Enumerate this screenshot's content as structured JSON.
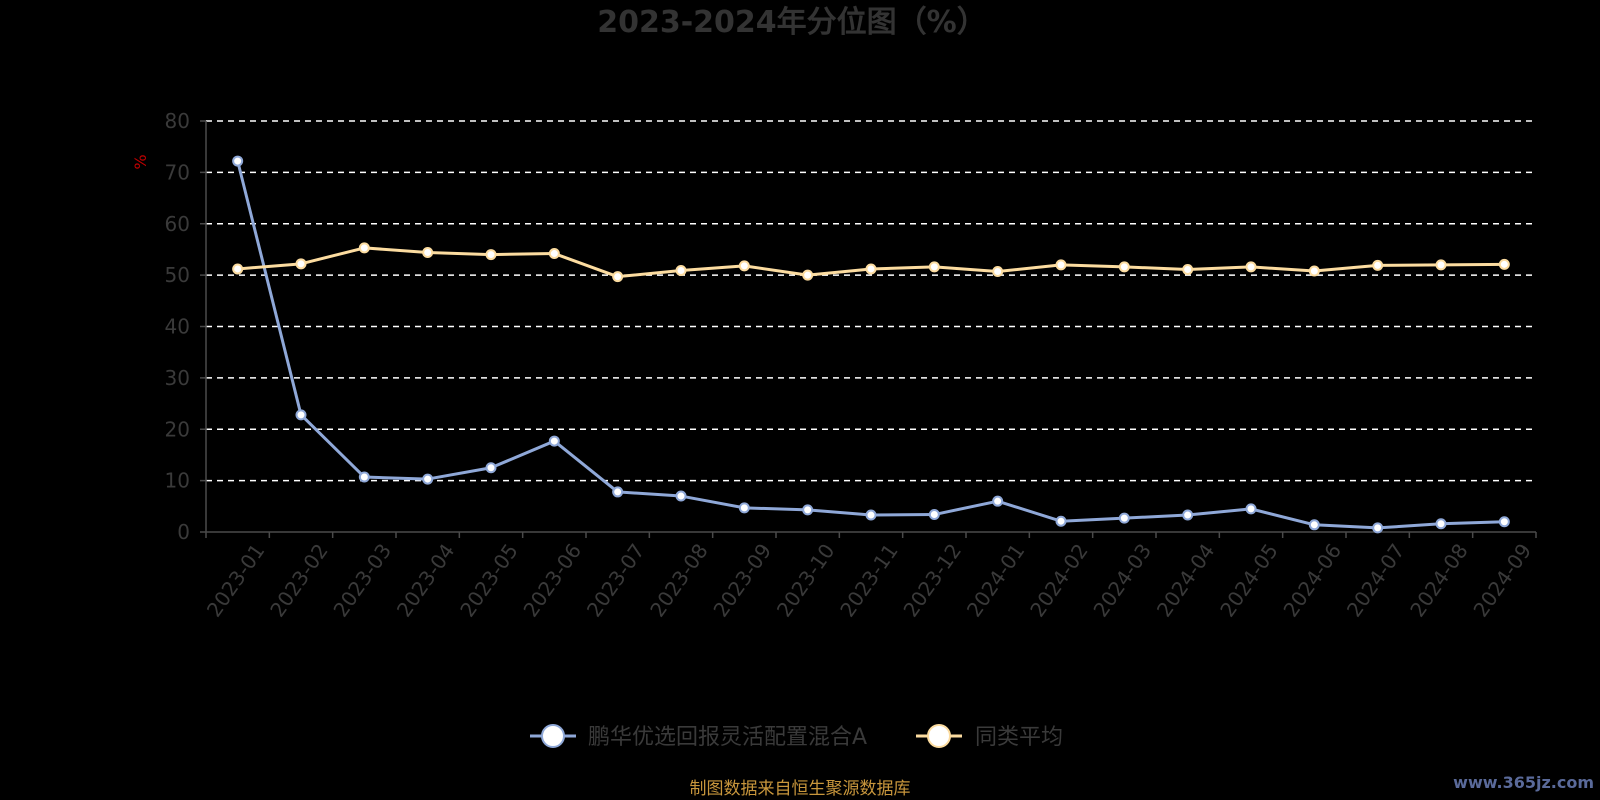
{
  "colors": {
    "background": "#000000",
    "series_a": "#8fa8d8",
    "series_b": "#fcdca0",
    "grid": "#ffffff",
    "axis": "#4a4a4a",
    "unit": "#c00000",
    "source": "#c8963c"
  },
  "footer": {
    "source": "制图数据来自恒生聚源数据库",
    "watermark": "www.365jz.com"
  },
  "chart_data": {
    "type": "line",
    "title": "2023-2024年分位图（%）",
    "ylabel": "%",
    "xlabel": "",
    "ylim": [
      0,
      80
    ],
    "yticks": [
      0,
      10,
      20,
      30,
      40,
      50,
      60,
      70,
      80
    ],
    "grid": true,
    "legend_position": "bottom-center",
    "categories": [
      "2023-01",
      "2023-02",
      "2023-03",
      "2023-04",
      "2023-05",
      "2023-06",
      "2023-07",
      "2023-08",
      "2023-09",
      "2023-10",
      "2023-11",
      "2023-12",
      "2024-01",
      "2024-02",
      "2024-03",
      "2024-04",
      "2024-05",
      "2024-06",
      "2024-07",
      "2024-08",
      "2024-09"
    ],
    "series": [
      {
        "name": "鹏华优选回报灵活配置混合A",
        "color": "#8fa8d8",
        "values": [
          72.2,
          22.8,
          10.7,
          10.3,
          12.5,
          17.7,
          7.8,
          7.0,
          4.7,
          4.3,
          3.3,
          3.4,
          6.0,
          2.1,
          2.7,
          3.3,
          4.5,
          1.4,
          0.8,
          1.6,
          2.0
        ]
      },
      {
        "name": "同类平均",
        "color": "#fcdca0",
        "values": [
          51.2,
          52.2,
          55.3,
          54.4,
          54.0,
          54.2,
          49.7,
          50.9,
          51.8,
          50.0,
          51.2,
          51.6,
          50.7,
          52.0,
          51.6,
          51.1,
          51.6,
          50.8,
          51.9,
          52.0,
          52.1
        ]
      }
    ]
  }
}
